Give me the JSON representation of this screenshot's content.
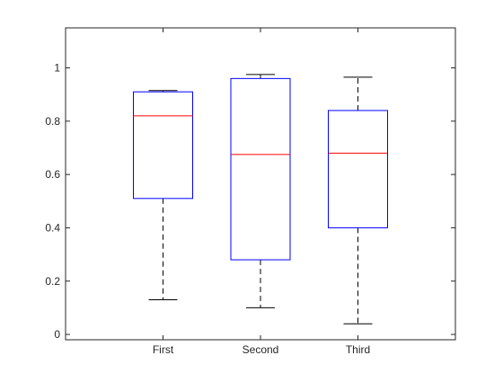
{
  "chart_data": {
    "type": "box",
    "categories": [
      "First",
      "Second",
      "Third"
    ],
    "boxes": [
      {
        "category": "First",
        "whisker_low": 0.13,
        "q1": 0.51,
        "median": 0.82,
        "q3": 0.91,
        "whisker_high": 0.915
      },
      {
        "category": "Second",
        "whisker_low": 0.1,
        "q1": 0.28,
        "median": 0.675,
        "q3": 0.96,
        "whisker_high": 0.975
      },
      {
        "category": "Third",
        "whisker_low": 0.04,
        "q1": 0.4,
        "median": 0.68,
        "q3": 0.84,
        "whisker_high": 0.965
      }
    ],
    "ylim": [
      -0.02,
      1.15
    ],
    "yticks": [
      0,
      0.2,
      0.4,
      0.6,
      0.8,
      1
    ],
    "ytick_labels": [
      "0",
      "0.2",
      "0.4",
      "0.6",
      "0.8",
      "1"
    ],
    "title": "",
    "xlabel": "",
    "ylabel": "",
    "grid": false,
    "colors": {
      "box": "#0000ff",
      "median": "#ff0000",
      "whisker": "#000000",
      "axes": "#262626"
    }
  }
}
